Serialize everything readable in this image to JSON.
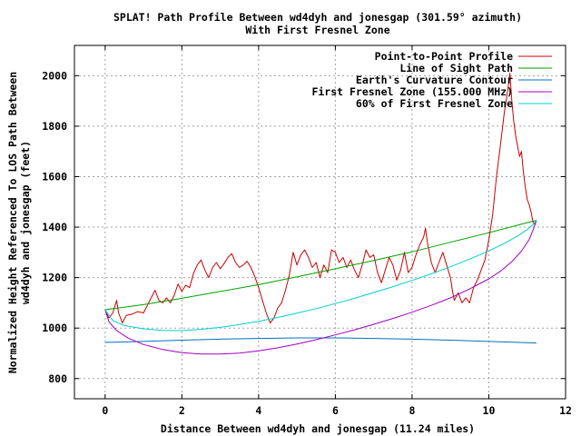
{
  "chart_data": {
    "type": "line",
    "title": "SPLAT! Path Profile Between wd4dyh and jonesgap (301.59° azimuth)",
    "subtitle": "With First Fresnel Zone",
    "xlabel": "Distance Between wd4dyh and jonesgap (11.24 miles)",
    "ylabel_line1": "Normalized Height Referenced To LOS Path Between",
    "ylabel_line2": "wd4dyh and jonesgap (feet)",
    "xlim": [
      -0.8,
      12
    ],
    "ylim": [
      720,
      2120
    ],
    "xticks": [
      0,
      2,
      4,
      6,
      8,
      10,
      12
    ],
    "yticks": [
      800,
      1000,
      1200,
      1400,
      1600,
      1800,
      2000
    ],
    "grid": true,
    "legend_position": "top-right",
    "series": [
      {
        "name": "Point-to-Point Profile",
        "color": "#cc0000",
        "points": [
          [
            0,
            1073
          ],
          [
            0.1,
            1040
          ],
          [
            0.2,
            1060
          ],
          [
            0.3,
            1110
          ],
          [
            0.35,
            1060
          ],
          [
            0.45,
            1020
          ],
          [
            0.55,
            1050
          ],
          [
            0.7,
            1055
          ],
          [
            0.85,
            1065
          ],
          [
            1.0,
            1060
          ],
          [
            1.1,
            1090
          ],
          [
            1.2,
            1120
          ],
          [
            1.3,
            1150
          ],
          [
            1.4,
            1110
          ],
          [
            1.5,
            1100
          ],
          [
            1.6,
            1120
          ],
          [
            1.7,
            1100
          ],
          [
            1.8,
            1130
          ],
          [
            1.9,
            1175
          ],
          [
            2.0,
            1145
          ],
          [
            2.1,
            1170
          ],
          [
            2.2,
            1160
          ],
          [
            2.3,
            1215
          ],
          [
            2.4,
            1250
          ],
          [
            2.5,
            1270
          ],
          [
            2.6,
            1230
          ],
          [
            2.7,
            1200
          ],
          [
            2.8,
            1240
          ],
          [
            2.9,
            1260
          ],
          [
            3.0,
            1235
          ],
          [
            3.1,
            1255
          ],
          [
            3.2,
            1280
          ],
          [
            3.3,
            1295
          ],
          [
            3.4,
            1260
          ],
          [
            3.5,
            1240
          ],
          [
            3.6,
            1250
          ],
          [
            3.7,
            1265
          ],
          [
            3.8,
            1240
          ],
          [
            3.9,
            1205
          ],
          [
            4.0,
            1160
          ],
          [
            4.1,
            1110
          ],
          [
            4.2,
            1060
          ],
          [
            4.3,
            1020
          ],
          [
            4.4,
            1040
          ],
          [
            4.5,
            1080
          ],
          [
            4.6,
            1100
          ],
          [
            4.7,
            1150
          ],
          [
            4.8,
            1210
          ],
          [
            4.9,
            1300
          ],
          [
            5.0,
            1250
          ],
          [
            5.1,
            1290
          ],
          [
            5.2,
            1310
          ],
          [
            5.3,
            1280
          ],
          [
            5.4,
            1240
          ],
          [
            5.5,
            1260
          ],
          [
            5.6,
            1200
          ],
          [
            5.7,
            1250
          ],
          [
            5.8,
            1220
          ],
          [
            5.9,
            1310
          ],
          [
            6.0,
            1300
          ],
          [
            6.1,
            1260
          ],
          [
            6.2,
            1280
          ],
          [
            6.3,
            1240
          ],
          [
            6.4,
            1270
          ],
          [
            6.5,
            1230
          ],
          [
            6.6,
            1200
          ],
          [
            6.7,
            1250
          ],
          [
            6.8,
            1310
          ],
          [
            6.9,
            1280
          ],
          [
            7.0,
            1290
          ],
          [
            7.1,
            1220
          ],
          [
            7.2,
            1180
          ],
          [
            7.3,
            1230
          ],
          [
            7.4,
            1280
          ],
          [
            7.5,
            1250
          ],
          [
            7.6,
            1190
          ],
          [
            7.7,
            1230
          ],
          [
            7.8,
            1300
          ],
          [
            7.9,
            1220
          ],
          [
            8.0,
            1240
          ],
          [
            8.1,
            1290
          ],
          [
            8.2,
            1330
          ],
          [
            8.3,
            1360
          ],
          [
            8.35,
            1395
          ],
          [
            8.4,
            1340
          ],
          [
            8.5,
            1260
          ],
          [
            8.6,
            1220
          ],
          [
            8.7,
            1260
          ],
          [
            8.8,
            1300
          ],
          [
            8.9,
            1250
          ],
          [
            9.0,
            1200
          ],
          [
            9.05,
            1150
          ],
          [
            9.1,
            1110
          ],
          [
            9.2,
            1140
          ],
          [
            9.3,
            1100
          ],
          [
            9.4,
            1120
          ],
          [
            9.5,
            1100
          ],
          [
            9.6,
            1160
          ],
          [
            9.7,
            1190
          ],
          [
            9.8,
            1230
          ],
          [
            9.9,
            1270
          ],
          [
            10.0,
            1350
          ],
          [
            10.1,
            1450
          ],
          [
            10.2,
            1600
          ],
          [
            10.3,
            1720
          ],
          [
            10.4,
            1850
          ],
          [
            10.5,
            1950
          ],
          [
            10.55,
            2010
          ],
          [
            10.6,
            1900
          ],
          [
            10.65,
            1820
          ],
          [
            10.7,
            1760
          ],
          [
            10.75,
            1720
          ],
          [
            10.8,
            1680
          ],
          [
            10.85,
            1700
          ],
          [
            10.9,
            1620
          ],
          [
            10.95,
            1560
          ],
          [
            11.0,
            1510
          ],
          [
            11.05,
            1490
          ],
          [
            11.1,
            1460
          ],
          [
            11.15,
            1420
          ],
          [
            11.2,
            1410
          ],
          [
            11.24,
            1427
          ]
        ]
      },
      {
        "name": "Line of Sight Path",
        "color": "#00a000",
        "points": [
          [
            0,
            1073
          ],
          [
            1,
            1093
          ],
          [
            2,
            1118
          ],
          [
            3,
            1145
          ],
          [
            4,
            1172
          ],
          [
            5,
            1203
          ],
          [
            6,
            1235
          ],
          [
            7,
            1268
          ],
          [
            8,
            1302
          ],
          [
            9,
            1340
          ],
          [
            10,
            1378
          ],
          [
            11,
            1418
          ],
          [
            11.24,
            1427
          ]
        ]
      },
      {
        "name": "Earth's Curvature Contour",
        "color": "#0070c0",
        "points": [
          [
            0,
            943
          ],
          [
            1,
            947
          ],
          [
            2,
            952
          ],
          [
            3,
            956
          ],
          [
            4,
            959
          ],
          [
            5,
            961
          ],
          [
            6,
            961
          ],
          [
            7,
            959
          ],
          [
            8,
            956
          ],
          [
            9,
            952
          ],
          [
            10,
            947
          ],
          [
            11,
            942
          ],
          [
            11.24,
            941
          ]
        ]
      },
      {
        "name": "First Fresnel Zone (155.000 MHz)",
        "color": "#a000c0",
        "points": [
          [
            0,
            1073
          ],
          [
            0.1,
            1025
          ],
          [
            0.3,
            990
          ],
          [
            0.6,
            960
          ],
          [
            1,
            935
          ],
          [
            1.5,
            915
          ],
          [
            2,
            903
          ],
          [
            2.5,
            897
          ],
          [
            3,
            897
          ],
          [
            3.5,
            901
          ],
          [
            4,
            910
          ],
          [
            4.5,
            922
          ],
          [
            5,
            937
          ],
          [
            5.5,
            954
          ],
          [
            6,
            973
          ],
          [
            6.5,
            993
          ],
          [
            7,
            1015
          ],
          [
            7.5,
            1038
          ],
          [
            8,
            1063
          ],
          [
            8.5,
            1090
          ],
          [
            9,
            1120
          ],
          [
            9.5,
            1155
          ],
          [
            10,
            1195
          ],
          [
            10.3,
            1225
          ],
          [
            10.6,
            1263
          ],
          [
            10.85,
            1305
          ],
          [
            11.05,
            1350
          ],
          [
            11.17,
            1395
          ],
          [
            11.24,
            1427
          ]
        ]
      },
      {
        "name": "60% of First Fresnel Zone",
        "color": "#00d0d0",
        "points": [
          [
            0,
            1073
          ],
          [
            0.2,
            1030
          ],
          [
            0.5,
            1010
          ],
          [
            1,
            997
          ],
          [
            1.5,
            991
          ],
          [
            2,
            990
          ],
          [
            2.5,
            995
          ],
          [
            3,
            1003
          ],
          [
            3.5,
            1014
          ],
          [
            4,
            1027
          ],
          [
            4.5,
            1042
          ],
          [
            5,
            1059
          ],
          [
            5.5,
            1077
          ],
          [
            6,
            1097
          ],
          [
            6.5,
            1118
          ],
          [
            7,
            1141
          ],
          [
            7.5,
            1164
          ],
          [
            8,
            1189
          ],
          [
            8.5,
            1215
          ],
          [
            9,
            1243
          ],
          [
            9.5,
            1273
          ],
          [
            10,
            1306
          ],
          [
            10.4,
            1335
          ],
          [
            10.75,
            1365
          ],
          [
            11.0,
            1390
          ],
          [
            11.15,
            1410
          ],
          [
            11.24,
            1427
          ]
        ]
      }
    ]
  }
}
